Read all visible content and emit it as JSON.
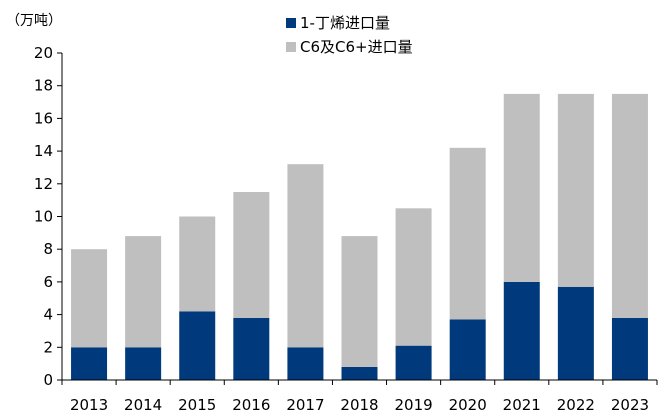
{
  "chart_data": {
    "type": "bar",
    "stacked": true,
    "unit_label": "（万吨）",
    "categories": [
      "2013",
      "2014",
      "2015",
      "2016",
      "2017",
      "2018",
      "2019",
      "2020",
      "2021",
      "2022",
      "2023"
    ],
    "series": [
      {
        "name": "1-丁烯进口量",
        "color": "#003A7D",
        "values": [
          2.0,
          2.0,
          4.2,
          3.8,
          2.0,
          0.8,
          2.1,
          3.7,
          6.0,
          5.7,
          3.8
        ]
      },
      {
        "name": "C6及C6+进口量",
        "color": "#BFBFBF",
        "values": [
          6.0,
          6.8,
          5.8,
          7.7,
          11.2,
          8.0,
          8.4,
          10.5,
          11.5,
          11.8,
          13.7
        ]
      }
    ],
    "ylim": [
      0,
      20
    ],
    "yticks": [
      0,
      2,
      4,
      6,
      8,
      10,
      12,
      14,
      16,
      18,
      20
    ],
    "grid": false,
    "legend_position": "top"
  }
}
